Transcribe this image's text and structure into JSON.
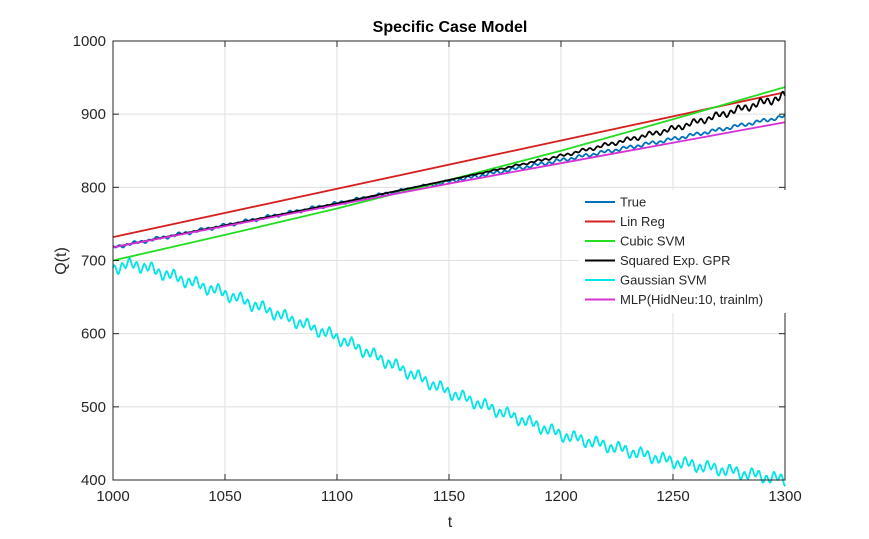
{
  "chart_data": {
    "type": "line",
    "title": "Specific Case Model",
    "xlabel": "t",
    "ylabel": "Q(t)",
    "xlim": [
      1000,
      1300
    ],
    "ylim": [
      400,
      1000
    ],
    "xticks": [
      1000,
      1050,
      1100,
      1150,
      1200,
      1250,
      1300
    ],
    "yticks": [
      400,
      500,
      600,
      700,
      800,
      900,
      1000
    ],
    "xtick_labels": [
      "1000",
      "1050",
      "1100",
      "1150",
      "1200",
      "1250",
      "1300"
    ],
    "ytick_labels": [
      "400",
      "500",
      "600",
      "700",
      "800",
      "900",
      "1000"
    ],
    "grid": true,
    "legend_position": "inside-right",
    "series": [
      {
        "name": "True",
        "color": "#0072BD",
        "x": [
          1000,
          1050,
          1100,
          1150,
          1200,
          1250,
          1300
        ],
        "y": [
          718,
          748,
          778,
          808,
          837,
          866,
          897
        ],
        "oscillation": 3
      },
      {
        "name": "Lin Reg",
        "color": "#D62020",
        "x": [
          1000,
          1300
        ],
        "y": [
          732,
          930
        ],
        "oscillation": 0
      },
      {
        "name": "Cubic SVM",
        "color": "#22DD22",
        "x": [
          1000,
          1050,
          1100,
          1150,
          1200,
          1250,
          1300
        ],
        "y": [
          700,
          735,
          771,
          810,
          850,
          893,
          937
        ],
        "oscillation": 0
      },
      {
        "name": "Squared Exp. GPR",
        "color": "#000000",
        "x": [
          1000,
          1050,
          1100,
          1150,
          1200,
          1250,
          1300
        ],
        "y": [
          718,
          748,
          778,
          810,
          843,
          880,
          925
        ],
        "oscillation": 7
      },
      {
        "name": "Gaussian SVM",
        "color": "#00E5E5",
        "x": [
          1000,
          1010,
          1050,
          1100,
          1150,
          1200,
          1250,
          1300
        ],
        "y": [
          690,
          695,
          655,
          595,
          520,
          462,
          425,
          400
        ],
        "oscillation": 10
      },
      {
        "name": "MLP(HidNeu:10, trainlm)",
        "color": "#D630D6",
        "x": [
          1000,
          1050,
          1100,
          1150,
          1200,
          1250,
          1300
        ],
        "y": [
          718,
          747,
          776,
          805,
          833,
          861,
          889
        ],
        "oscillation": 0
      }
    ]
  }
}
